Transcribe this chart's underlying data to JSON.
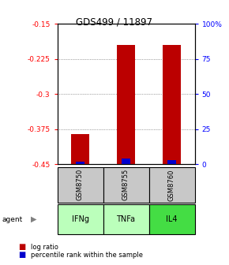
{
  "title": "GDS499 / 11897",
  "samples": [
    "GSM8750",
    "GSM8755",
    "GSM8760"
  ],
  "agents": [
    "IFNg",
    "TNFa",
    "IL4"
  ],
  "log_ratio_values": [
    -0.385,
    -0.195,
    -0.195
  ],
  "percentile_values": [
    2,
    4,
    3
  ],
  "ylim_left": [
    -0.45,
    -0.15
  ],
  "ylim_right": [
    0,
    100
  ],
  "yticks_left": [
    -0.45,
    -0.375,
    -0.3,
    -0.225,
    -0.15
  ],
  "yticks_right": [
    0,
    25,
    50,
    75,
    100
  ],
  "ytick_labels_left": [
    "-0.45",
    "-0.375",
    "-0.3",
    "-0.225",
    "-0.15"
  ],
  "ytick_labels_right": [
    "0",
    "25",
    "50",
    "75",
    "100%"
  ],
  "bar_width": 0.4,
  "red_color": "#bb0000",
  "blue_color": "#0000cc",
  "grid_color": "#555555",
  "sample_box_color": "#c8c8c8",
  "agent_colors": [
    "#bbffbb",
    "#bbffbb",
    "#44dd44"
  ],
  "legend_red_label": "log ratio",
  "legend_blue_label": "percentile rank within the sample"
}
